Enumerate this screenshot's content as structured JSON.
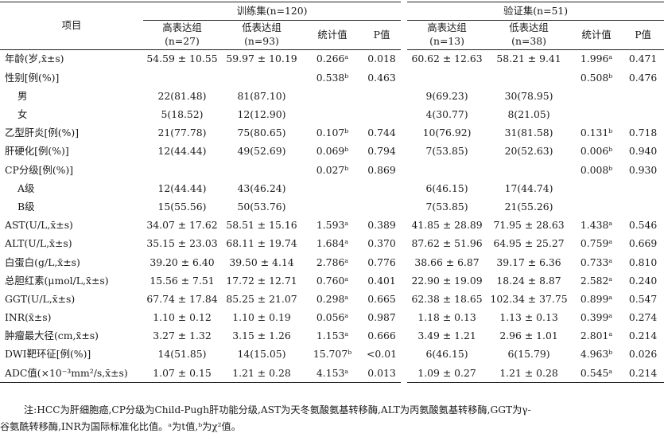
{
  "header": {
    "item_label": "项目",
    "train_group": "训练集(n=120)",
    "valid_group": "验证集(n=51)",
    "cols": [
      [
        "高表达组",
        "(n=27)"
      ],
      [
        "低表达组",
        "(n=93)"
      ],
      [
        "统计值"
      ],
      [
        "P值"
      ],
      [
        "高表达组",
        "(n=13)"
      ],
      [
        "低表达组",
        "(n=38)"
      ],
      [
        "统计值"
      ],
      [
        "P值"
      ]
    ]
  },
  "rows": [
    {
      "item": "年龄(岁,x̄±s)",
      "sub": false,
      "v": [
        "54.59 ± 10.55",
        "59.97 ± 10.19",
        "0.266ᵃ",
        "0.018",
        "60.62 ± 12.63",
        "58.21 ±  9.41",
        "1.996ᵃ",
        "0.471"
      ]
    },
    {
      "item": "性别[例(%)]",
      "sub": false,
      "v": [
        "",
        "",
        "0.538ᵇ",
        "0.463",
        "",
        "",
        "0.508ᵇ",
        "0.476"
      ]
    },
    {
      "item": "男",
      "sub": true,
      "v": [
        "22(81.48)",
        "81(87.10)",
        "",
        "",
        "9(69.23)",
        "30(78.95)",
        "",
        ""
      ]
    },
    {
      "item": "女",
      "sub": true,
      "v": [
        "5(18.52)",
        "12(12.90)",
        "",
        "",
        "4(30.77)",
        "8(21.05)",
        "",
        ""
      ]
    },
    {
      "item": "乙型肝炎[例(%)]",
      "sub": false,
      "v": [
        "21(77.78)",
        "75(80.65)",
        "0.107ᵇ",
        "0.744",
        "10(76.92)",
        "31(81.58)",
        "0.131ᵇ",
        "0.718"
      ]
    },
    {
      "item": "肝硬化[例(%)]",
      "sub": false,
      "v": [
        "12(44.44)",
        "49(52.69)",
        "0.069ᵇ",
        "0.794",
        "7(53.85)",
        "20(52.63)",
        "0.006ᵇ",
        "0.940"
      ]
    },
    {
      "item": "CP分级[例(%)]",
      "sub": false,
      "v": [
        "",
        "",
        "0.027ᵇ",
        "0.869",
        "",
        "",
        "0.008ᵇ",
        "0.930"
      ]
    },
    {
      "item": "A级",
      "sub": true,
      "v": [
        "12(44.44)",
        "43(46.24)",
        "",
        "",
        "6(46.15)",
        "17(44.74)",
        "",
        ""
      ]
    },
    {
      "item": "B级",
      "sub": true,
      "v": [
        "15(55.56)",
        "50(53.76)",
        "",
        "",
        "7(53.85)",
        "21(55.26)",
        "",
        ""
      ]
    },
    {
      "item": "AST(U/L,x̄±s)",
      "sub": false,
      "v": [
        "34.07 ± 17.62",
        "58.51 ± 15.16",
        "1.593ᵃ",
        "0.389",
        "41.85 ± 28.89",
        "71.95 ± 28.63",
        "1.438ᵃ",
        "0.546"
      ]
    },
    {
      "item": "ALT(U/L,x̄±s)",
      "sub": false,
      "v": [
        "35.15 ± 23.03",
        "68.11 ± 19.74",
        "1.684ᵃ",
        "0.370",
        "87.62 ± 51.96",
        "64.95 ± 25.27",
        "0.759ᵃ",
        "0.669"
      ]
    },
    {
      "item": "白蛋白(g/L,x̄±s)",
      "sub": false,
      "v": [
        "39.20 ±  6.40",
        "39.50 ±  4.14",
        "2.786ᵃ",
        "0.776",
        "38.66 ±  6.87",
        "39.17 ±  6.36",
        "0.733ᵃ",
        "0.810"
      ]
    },
    {
      "item": "总胆红素(μmol/L,x̄±s)",
      "sub": false,
      "v": [
        "15.56 ±  7.51",
        "17.72 ± 12.71",
        "0.760ᵃ",
        "0.401",
        "22.90 ± 19.09",
        "18.24 ±  8.87",
        "2.582ᵃ",
        "0.240"
      ]
    },
    {
      "item": "GGT(U/L,x̄±s)",
      "sub": false,
      "v": [
        "67.74 ± 17.84",
        "85.25 ± 21.07",
        "0.298ᵃ",
        "0.665",
        "62.38 ± 18.65",
        "102.34 ± 37.75",
        "0.899ᵃ",
        "0.547"
      ]
    },
    {
      "item": "INR(x̄±s)",
      "sub": false,
      "v": [
        "1.10 ±  0.12",
        "1.10 ±  0.19",
        "0.056ᵃ",
        "0.987",
        "1.18 ±  0.13",
        "1.13 ±  0.13",
        "0.399ᵃ",
        "0.274"
      ]
    },
    {
      "item": "肿瘤最大径(cm,x̄±s)",
      "sub": false,
      "v": [
        "3.27 ±  1.32",
        "3.15 ±  1.26",
        "1.153ᵃ",
        "0.666",
        "3.49 ±  1.21",
        "2.96 ±  1.01",
        "2.801ᵃ",
        "0.214"
      ]
    },
    {
      "item": "DWI靶环征[例(%)]",
      "sub": false,
      "v": [
        "14(51.85)",
        "14(15.05)",
        "15.707ᵇ",
        "<0.01",
        "6(46.15)",
        "6(15.79)",
        "4.963ᵇ",
        "0.026"
      ]
    },
    {
      "item": "ADC值(×10⁻³mm²/s,x̄±s)",
      "sub": false,
      "v": [
        "1.07 ±  0.15",
        "1.21 ±  0.28",
        "4.153ᵃ",
        "0.013",
        "1.09 ±  0.27",
        "1.21 ±  0.28",
        "0.545ᵃ",
        "0.214"
      ]
    }
  ],
  "note": {
    "line1": "注:HCC为肝细胞癌,CP分级为Child-Pugh肝功能分级,AST为天冬氨酸氨基转移酶,ALT为丙氨酸氨基转移酶,GGT为γ-",
    "line2": "谷氨酰转移酶,INR为国际标准化比值。ᵃ为t值,ᵇ为χ²值。"
  }
}
